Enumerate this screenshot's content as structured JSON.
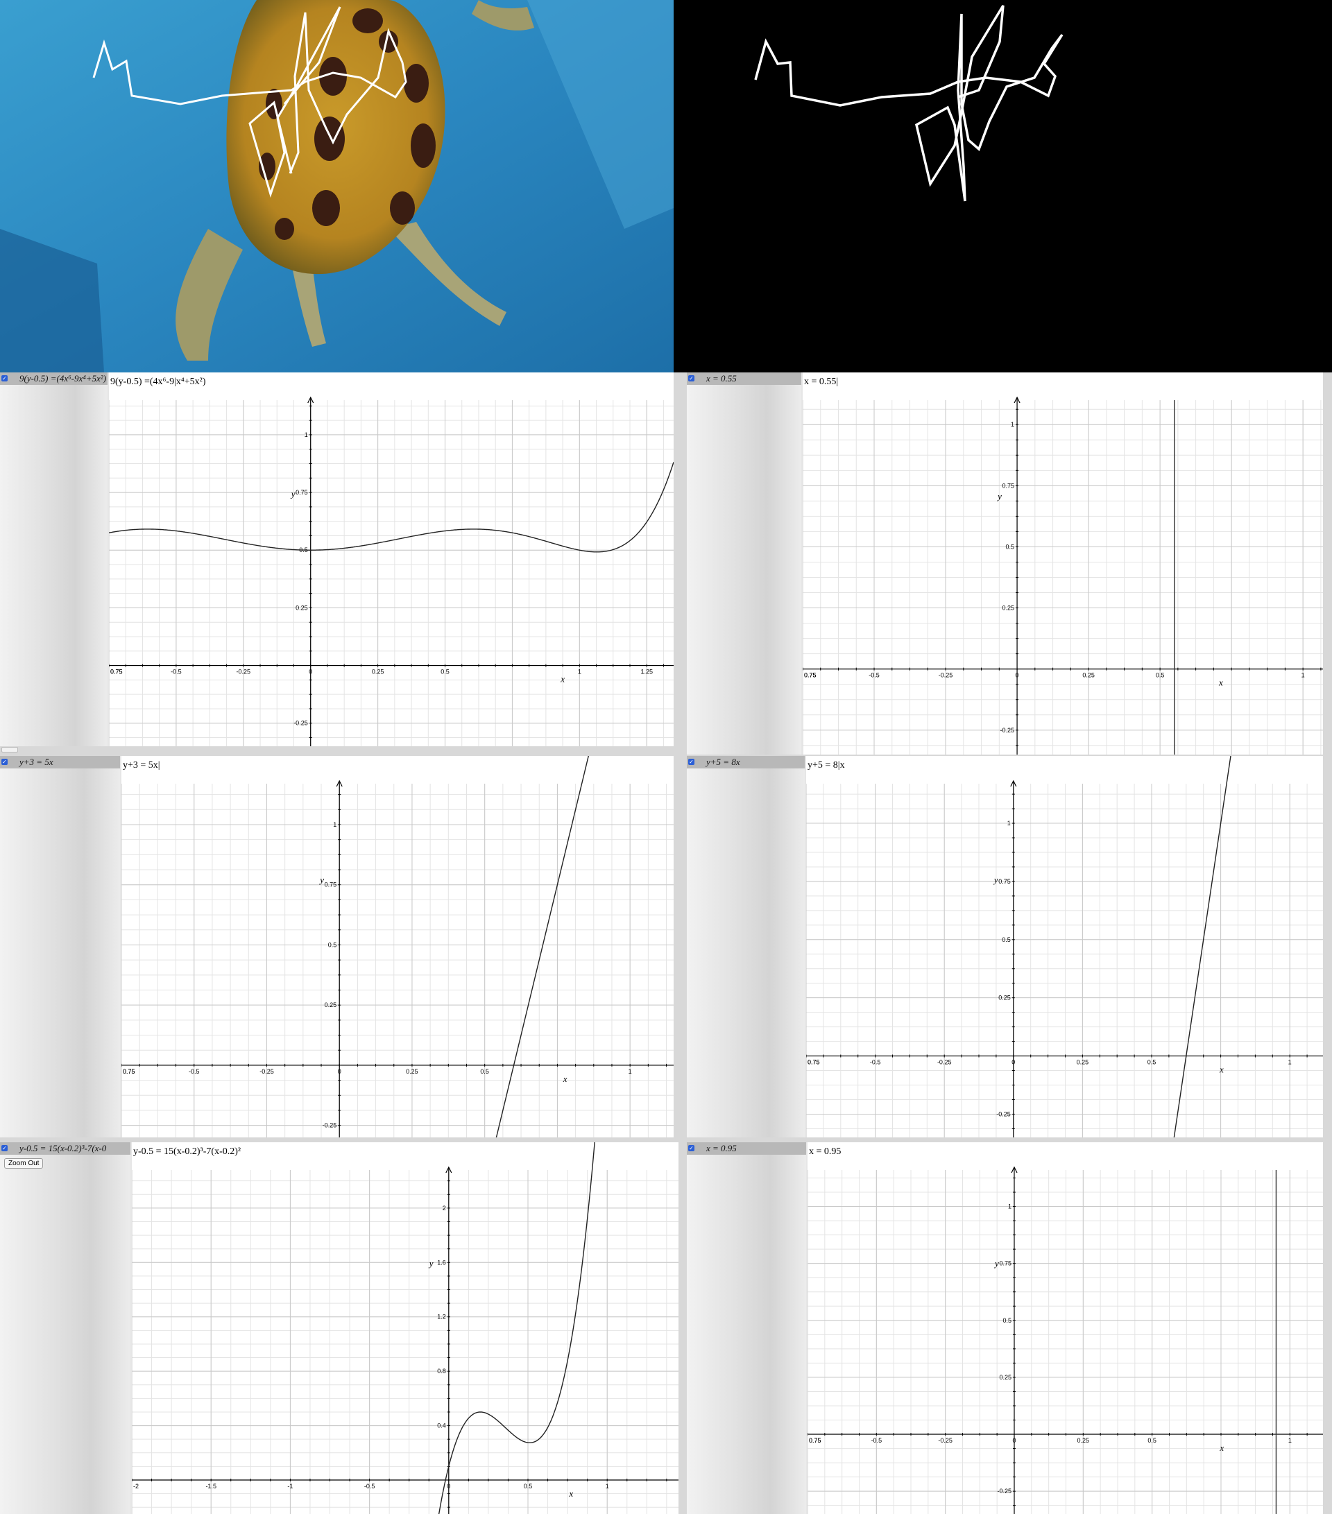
{
  "panels": [
    {
      "id": "p1",
      "checked": true,
      "sidebar_label": "9(y-0.5) =(4x⁶-9x⁴+5x²)",
      "equation": "9(y-0.5) =(4x⁶-9|x⁴+5x²)",
      "x_ticks": [
        "0.75",
        "-0.5",
        "-0.25",
        "0",
        "0.25",
        "0.5",
        "0.75",
        "1",
        "1.25"
      ],
      "y_ticks": [
        "1",
        "0.75",
        "0.5",
        "0.25",
        "-0.25"
      ],
      "xlabel": "x",
      "ylabel": "y"
    },
    {
      "id": "p2",
      "checked": true,
      "sidebar_label": "x = 0.55",
      "equation": "x = 0.55|",
      "x_ticks": [
        "0.75",
        "-0.5",
        "-0.25",
        "0",
        "0.25",
        "0.5",
        "0.75",
        "1"
      ],
      "y_ticks": [
        "1",
        "0.75",
        "0.5",
        "0.25",
        "-0.25"
      ],
      "xlabel": "x",
      "ylabel": "y"
    },
    {
      "id": "p3",
      "checked": true,
      "sidebar_label": "y+3 = 5x",
      "equation": "y+3 = 5x|",
      "x_ticks": [
        "0.75",
        "-0.5",
        "-0.25",
        "0",
        "0.25",
        "0.5",
        "0.75",
        "1"
      ],
      "y_ticks": [
        "1",
        "0.75",
        "0.5",
        "0.25",
        "-0.25"
      ],
      "xlabel": "x",
      "ylabel": "y"
    },
    {
      "id": "p4",
      "checked": true,
      "sidebar_label": "y+5 = 8x",
      "equation": "y+5 = 8|x",
      "x_ticks": [
        "0.75",
        "-0.5",
        "-0.25",
        "0",
        "0.25",
        "0.5",
        "0.75",
        "1"
      ],
      "y_ticks": [
        "1",
        "0.75",
        "0.5",
        "0.25",
        "-0.25"
      ],
      "xlabel": "x",
      "ylabel": "y"
    },
    {
      "id": "p5",
      "checked": true,
      "sidebar_label": "y-0.5 = 15(x-0.2)³-7(x-0",
      "equation": "y-0.5 = 15(x-0.2)³-7(x-0.2)²",
      "zoom_label": "Zoom Out",
      "x_ticks": [
        "-2",
        "-1.5",
        "-1",
        "-0.5",
        "0",
        "0.5",
        "1"
      ],
      "y_ticks": [
        "2",
        "1.6",
        "1.2",
        "0.8",
        "0.4"
      ],
      "xlabel": "x",
      "ylabel": "y"
    },
    {
      "id": "p6",
      "checked": true,
      "sidebar_label": "x = 0.95",
      "equation": "x = 0.95",
      "x_ticks": [
        "0.75",
        "-0.5",
        "-0.25",
        "0",
        "0.25",
        "0.5",
        "0.75",
        "1"
      ],
      "y_ticks": [
        "1",
        "0.75",
        "0.5",
        "0.25",
        "-0.25"
      ],
      "xlabel": "x",
      "ylabel": "y"
    }
  ],
  "chart_data": [
    {
      "type": "line",
      "panel": "p1",
      "title": "9(y-0.5) =(4x⁶-9|x⁴+5x²)",
      "xlabel": "x",
      "ylabel": "y",
      "xlim": [
        -0.75,
        1.35
      ],
      "ylim": [
        -0.35,
        1.15
      ],
      "function": "y = 0.5 + (4x^6 - 9x^4 + 5x^2)/9"
    },
    {
      "type": "line",
      "panel": "p2",
      "title": "x = 0.55|",
      "xlabel": "x",
      "ylabel": "y",
      "xlim": [
        -0.75,
        1.07
      ],
      "ylim": [
        -0.35,
        1.1
      ],
      "vertical_x": 0.55
    },
    {
      "type": "line",
      "panel": "p3",
      "title": "y+3 = 5x|",
      "xlabel": "x",
      "ylabel": "y",
      "xlim": [
        -0.75,
        1.15
      ],
      "ylim": [
        -0.3,
        1.17
      ],
      "function": "y = 5x - 3"
    },
    {
      "type": "line",
      "panel": "p4",
      "title": "y+5 = 8|x",
      "xlabel": "x",
      "ylabel": "y",
      "xlim": [
        -0.75,
        1.12
      ],
      "ylim": [
        -0.35,
        1.17
      ],
      "function": "y = 8x - 5"
    },
    {
      "type": "line",
      "panel": "p5",
      "title": "y-0.5 = 15(x-0.2)³-7(x-0.2)²",
      "xlabel": "x",
      "ylabel": "y",
      "xlim": [
        -2,
        1.45
      ],
      "ylim": [
        -0.25,
        2.28
      ],
      "function": "y = 0.5 + 15(x-0.2)^3 - 7(x-0.2)^2"
    },
    {
      "type": "line",
      "panel": "p6",
      "title": "x = 0.95",
      "xlabel": "x",
      "ylabel": "y",
      "xlim": [
        -0.75,
        1.12
      ],
      "ylim": [
        -0.35,
        1.16
      ],
      "vertical_x": 0.95
    }
  ]
}
